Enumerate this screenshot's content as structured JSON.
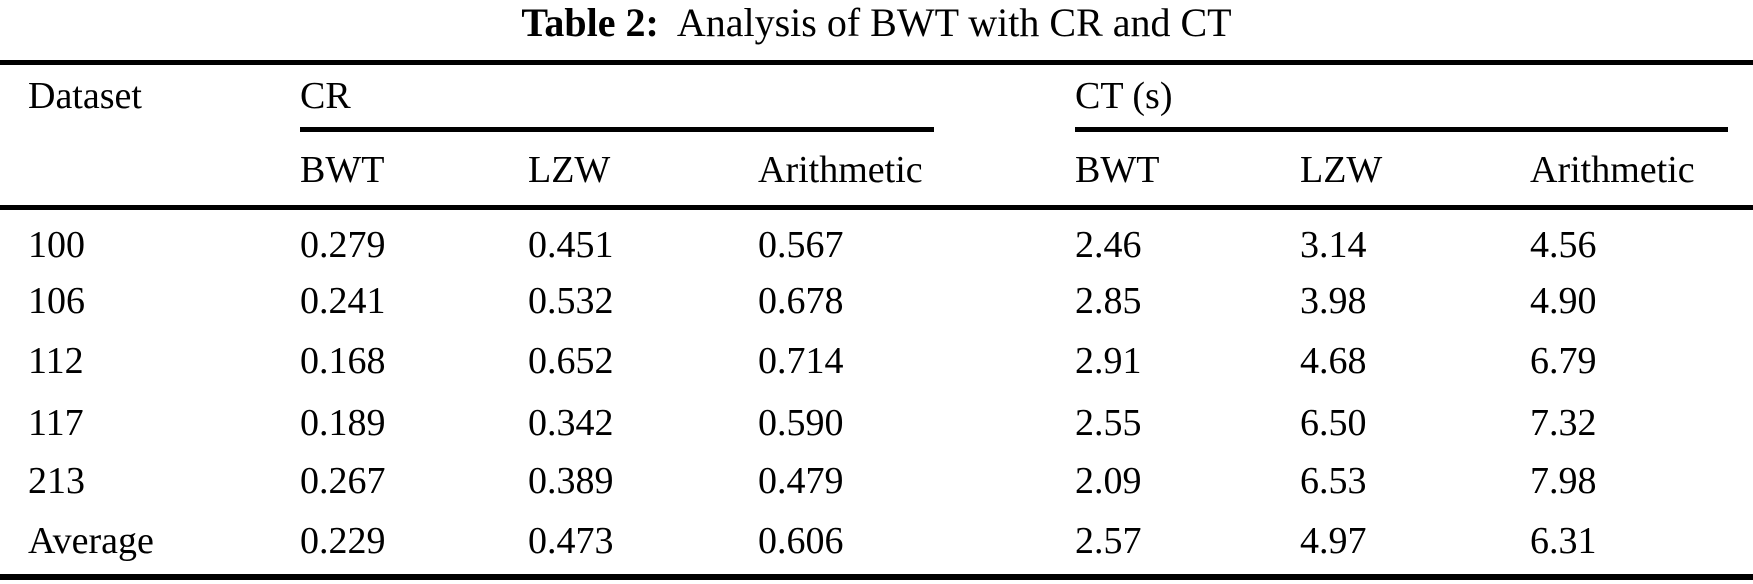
{
  "title": {
    "label": "Table 2:",
    "text": "Analysis of BWT with CR and CT"
  },
  "table": {
    "header": {
      "dataset": "Dataset",
      "group_cr": "CR",
      "group_ct": "CT (s)",
      "sub_bwt": "BWT",
      "sub_lzw": "LZW",
      "sub_arithmetic": "Arithmetic"
    },
    "rows": [
      {
        "dataset": "100",
        "cr_bwt": "0.279",
        "cr_lzw": "0.451",
        "cr_arith": "0.567",
        "ct_bwt": "2.46",
        "ct_lzw": "3.14",
        "ct_arith": "4.56"
      },
      {
        "dataset": "106",
        "cr_bwt": "0.241",
        "cr_lzw": "0.532",
        "cr_arith": "0.678",
        "ct_bwt": "2.85",
        "ct_lzw": "3.98",
        "ct_arith": "4.90"
      },
      {
        "dataset": "112",
        "cr_bwt": "0.168",
        "cr_lzw": "0.652",
        "cr_arith": "0.714",
        "ct_bwt": "2.91",
        "ct_lzw": "4.68",
        "ct_arith": "6.79"
      },
      {
        "dataset": "117",
        "cr_bwt": "0.189",
        "cr_lzw": "0.342",
        "cr_arith": "0.590",
        "ct_bwt": "2.55",
        "ct_lzw": "6.50",
        "ct_arith": "7.32"
      },
      {
        "dataset": "213",
        "cr_bwt": "0.267",
        "cr_lzw": "0.389",
        "cr_arith": "0.479",
        "ct_bwt": "2.09",
        "ct_lzw": "6.53",
        "ct_arith": "7.98"
      },
      {
        "dataset": "Average",
        "cr_bwt": "0.229",
        "cr_lzw": "0.473",
        "cr_arith": "0.606",
        "ct_bwt": "2.57",
        "ct_lzw": "4.97",
        "ct_arith": "6.31"
      }
    ]
  },
  "colors": {
    "background": "#ffffff",
    "text": "#000000",
    "rule": "#000000"
  }
}
